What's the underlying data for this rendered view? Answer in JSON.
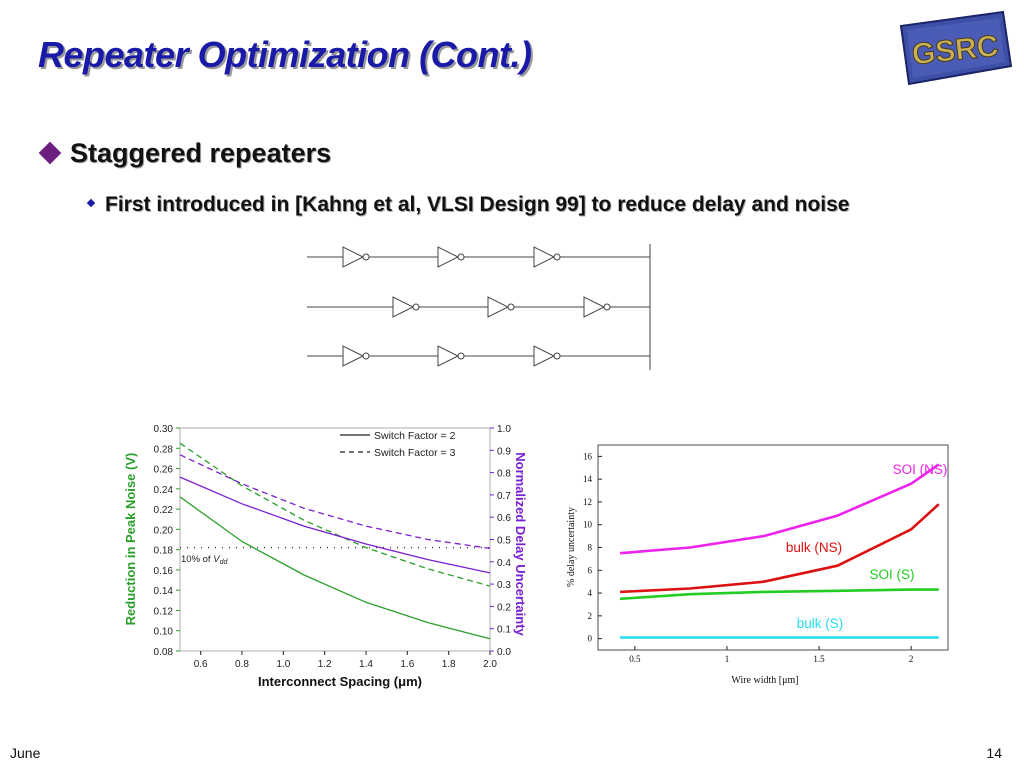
{
  "slide": {
    "title": "Repeater Optimization (Cont.)",
    "logo_text": "GSRC",
    "bullet1": "Staggered repeaters",
    "bullet2": "First introduced in [Kahng et al, VLSI Design 99] to reduce delay and noise",
    "footer_left": "June",
    "page_number": "14"
  },
  "colors": {
    "title": "#1a1aa8",
    "bullet_diamond": "#6b1f7e",
    "green": "#2aa02a",
    "purple": "#7a1fd1"
  },
  "chart_data": [
    {
      "type": "line",
      "xlabel": "Interconnect Spacing (μm)",
      "ylabel_left": "Reduction in Peak Noise (V)",
      "ylabel_right": "Normalized Delay Uncertainty",
      "xlim": [
        0.5,
        2.0
      ],
      "ylim_left": [
        0.08,
        0.3
      ],
      "ylim_right": [
        0.0,
        1.0
      ],
      "x_ticks": [
        "0.6",
        "0.8",
        "1.0",
        "1.2",
        "1.4",
        "1.6",
        "1.8",
        "2.0"
      ],
      "y_ticks_left": [
        "0.08",
        "0.10",
        "0.12",
        "0.14",
        "0.16",
        "0.18",
        "0.20",
        "0.22",
        "0.24",
        "0.26",
        "0.28",
        "0.30"
      ],
      "y_ticks_right": [
        "0.0",
        "0.1",
        "0.2",
        "0.3",
        "0.4",
        "0.5",
        "0.6",
        "0.7",
        "0.8",
        "0.9",
        "1.0"
      ],
      "legend": [
        "Switch Factor = 2",
        "Switch Factor = 3"
      ],
      "annotation": "10% of Vdd",
      "threshold_y_left": 0.182,
      "x": [
        0.5,
        0.8,
        1.1,
        1.4,
        1.7,
        2.0
      ],
      "series": [
        {
          "axis": "left",
          "color": "green",
          "dash": "solid",
          "values": [
            0.232,
            0.188,
            0.155,
            0.128,
            0.108,
            0.092
          ]
        },
        {
          "axis": "left",
          "color": "green",
          "dash": "dashed",
          "values": [
            0.285,
            0.243,
            0.209,
            0.182,
            0.161,
            0.144
          ]
        },
        {
          "axis": "right",
          "color": "purple",
          "dash": "solid",
          "values": [
            0.78,
            0.66,
            0.56,
            0.48,
            0.41,
            0.35
          ]
        },
        {
          "axis": "right",
          "color": "purple",
          "dash": "dashed",
          "values": [
            0.88,
            0.75,
            0.64,
            0.56,
            0.5,
            0.46
          ]
        }
      ]
    },
    {
      "type": "line",
      "xlabel": "Wire width [μm]",
      "ylabel": "% delay uncertainty",
      "xlim": [
        0.3,
        2.2
      ],
      "ylim": [
        -1,
        17
      ],
      "x_ticks": [
        "0.5",
        "1",
        "1.5",
        "2"
      ],
      "y_ticks": [
        "0",
        "2",
        "4",
        "6",
        "8",
        "10",
        "12",
        "14",
        "16"
      ],
      "x": [
        0.42,
        0.8,
        1.2,
        1.6,
        2.0,
        2.15
      ],
      "series": [
        {
          "name": "SOI (NS)",
          "color": "#ee22ee",
          "values": [
            7.5,
            8.0,
            9.0,
            10.8,
            13.6,
            15.3
          ]
        },
        {
          "name": "bulk (NS)",
          "color": "#dd1111",
          "values": [
            4.1,
            4.4,
            5.0,
            6.4,
            9.6,
            11.8
          ]
        },
        {
          "name": "SOI (S)",
          "color": "#22cc22",
          "values": [
            3.5,
            3.9,
            4.1,
            4.2,
            4.3,
            4.3
          ]
        },
        {
          "name": "bulk (S)",
          "color": "#22ddee",
          "values": [
            0.1,
            0.1,
            0.1,
            0.1,
            0.1,
            0.1
          ]
        }
      ]
    }
  ]
}
